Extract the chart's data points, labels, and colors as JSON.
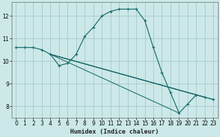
{
  "xlabel": "Humidex (Indice chaleur)",
  "bg_color": "#cce8e8",
  "grid_color": "#aacccc",
  "line_color": "#1a6b6b",
  "xlim": [
    -0.5,
    23.5
  ],
  "ylim": [
    7.5,
    12.6
  ],
  "xticks": [
    0,
    1,
    2,
    3,
    4,
    5,
    6,
    7,
    8,
    9,
    10,
    11,
    12,
    13,
    14,
    15,
    16,
    17,
    18,
    19,
    20,
    21,
    22,
    23
  ],
  "yticks": [
    8,
    9,
    10,
    11,
    12
  ],
  "main_series": [
    [
      0,
      10.6
    ],
    [
      1,
      10.6
    ],
    [
      2,
      10.6
    ],
    [
      3,
      10.5
    ],
    [
      4,
      10.3
    ],
    [
      5,
      9.8
    ],
    [
      6,
      9.9
    ],
    [
      7,
      10.3
    ],
    [
      8,
      11.1
    ],
    [
      9,
      11.5
    ],
    [
      10,
      12.0
    ],
    [
      11,
      12.2
    ],
    [
      12,
      12.3
    ],
    [
      13,
      12.3
    ],
    [
      14,
      12.3
    ],
    [
      15,
      11.8
    ],
    [
      16,
      10.6
    ],
    [
      17,
      9.5
    ],
    [
      18,
      8.6
    ],
    [
      19,
      7.7
    ],
    [
      20,
      8.1
    ],
    [
      21,
      8.5
    ],
    [
      22,
      8.4
    ],
    [
      23,
      8.3
    ]
  ],
  "fan_lines": [
    {
      "x": [
        4,
        19
      ],
      "y": [
        10.3,
        7.7
      ]
    },
    {
      "x": [
        4,
        21
      ],
      "y": [
        10.3,
        8.5
      ]
    },
    {
      "x": [
        4,
        22
      ],
      "y": [
        10.3,
        8.4
      ]
    },
    {
      "x": [
        4,
        23
      ],
      "y": [
        10.3,
        8.3
      ]
    }
  ]
}
